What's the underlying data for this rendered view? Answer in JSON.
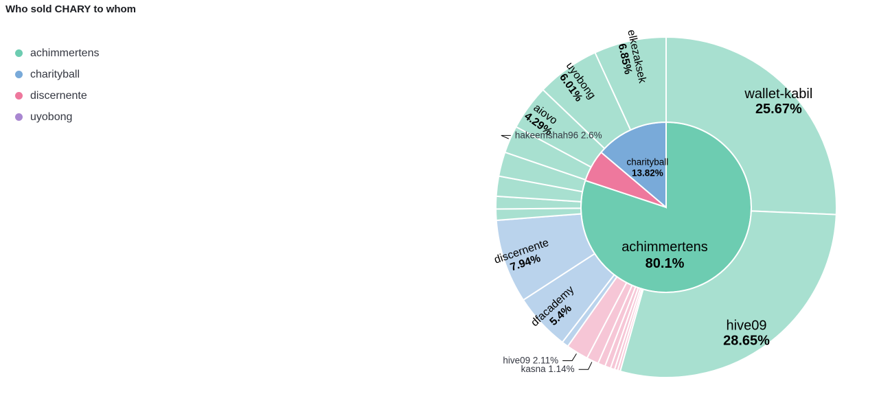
{
  "title": "Who sold CHARY to whom",
  "legend": [
    {
      "label": "achimmertens",
      "color": "#6dccb1"
    },
    {
      "label": "charityball",
      "color": "#79aad9"
    },
    {
      "label": "discernente",
      "color": "#ee789d"
    },
    {
      "label": "uyobong",
      "color": "#a987d1"
    }
  ],
  "chart_data": {
    "type": "pie",
    "title": "Who sold CHARY to whom",
    "inner": [
      {
        "name": "achimmertens",
        "value": 80.1,
        "label": "80.1%",
        "color": "#6dccb1"
      },
      {
        "name": "discernente",
        "value": 6.08,
        "color": "#ee789d"
      },
      {
        "name": "charityball",
        "value": 13.82,
        "label": "13.82%",
        "color": "#79aad9"
      }
    ],
    "outer": [
      {
        "name": "wallet-kabil",
        "value": 25.67,
        "label": "25.67%",
        "parent": "achimmertens"
      },
      {
        "name": "hive09",
        "value": 28.65,
        "label": "28.65%",
        "parent": "achimmertens"
      },
      {
        "name": "",
        "value": 0.25,
        "parent": "discernente"
      },
      {
        "name": "",
        "value": 0.3,
        "parent": "discernente"
      },
      {
        "name": "",
        "value": 0.4,
        "parent": "discernente"
      },
      {
        "name": "",
        "value": 0.55,
        "parent": "discernente"
      },
      {
        "name": "",
        "value": 0.7,
        "parent": "discernente"
      },
      {
        "name": "kasna",
        "value": 1.14,
        "label": "1.14%",
        "parent": "discernente"
      },
      {
        "name": "hive09",
        "value": 2.11,
        "label": "2.11%",
        "parent": "discernente"
      },
      {
        "name": "",
        "value": 0.63,
        "parent": "charityball"
      },
      {
        "name": "dfacademy",
        "value": 5.4,
        "label": "5.4%",
        "parent": "charityball"
      },
      {
        "name": "discernente",
        "value": 7.94,
        "label": "7.94%",
        "parent": "charityball"
      },
      {
        "name": "",
        "value": 1.06,
        "parent": "achimmertens"
      },
      {
        "name": "",
        "value": 1.2,
        "parent": "achimmertens"
      },
      {
        "name": "",
        "value": 1.9,
        "parent": "achimmertens"
      },
      {
        "name": "",
        "value": 2.3,
        "parent": "achimmertens"
      },
      {
        "name": "hakeemshah96",
        "value": 2.6,
        "label": "2.6%",
        "parent": "achimmertens"
      },
      {
        "name": "aiovo",
        "value": 4.29,
        "label": "4.29%",
        "parent": "achimmertens"
      },
      {
        "name": "uyobong",
        "value": 6.01,
        "label": "6.01%",
        "parent": "achimmertens"
      },
      {
        "name": "elkezaksek",
        "value": 6.85,
        "label": "6.85%",
        "parent": "achimmertens"
      }
    ],
    "legend_position": "left"
  }
}
